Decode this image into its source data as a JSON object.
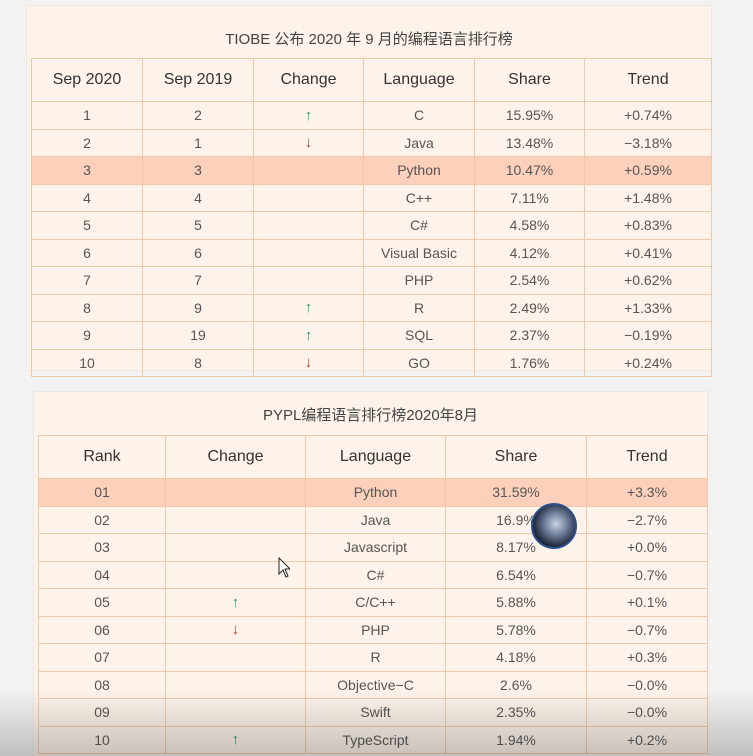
{
  "tiobe": {
    "title": "TIOBE 公布 2020 年 9 月的编程语言排行榜",
    "headers": [
      "Sep 2020",
      "Sep 2019",
      "Change",
      "Language",
      "Share",
      "Trend"
    ],
    "rows": [
      {
        "rank": "1",
        "prev": "2",
        "change": "up",
        "language": "C",
        "share": "15.95%",
        "trend": "+0.74%"
      },
      {
        "rank": "2",
        "prev": "1",
        "change": "down",
        "language": "Java",
        "share": "13.48%",
        "trend": "−3.18%"
      },
      {
        "rank": "3",
        "prev": "3",
        "change": "",
        "language": "Python",
        "share": "10.47%",
        "trend": "+0.59%",
        "highlight": true
      },
      {
        "rank": "4",
        "prev": "4",
        "change": "",
        "language": "C++",
        "share": "7.11%",
        "trend": "+1.48%"
      },
      {
        "rank": "5",
        "prev": "5",
        "change": "",
        "language": "C#",
        "share": "4.58%",
        "trend": "+0.83%"
      },
      {
        "rank": "6",
        "prev": "6",
        "change": "",
        "language": "Visual Basic",
        "share": "4.12%",
        "trend": "+0.41%"
      },
      {
        "rank": "7",
        "prev": "7",
        "change": "",
        "language": "PHP",
        "share": "2.54%",
        "trend": "+0.62%"
      },
      {
        "rank": "8",
        "prev": "9",
        "change": "up",
        "language": "R",
        "share": "2.49%",
        "trend": "+1.33%"
      },
      {
        "rank": "9",
        "prev": "19",
        "change": "up",
        "language": "SQL",
        "share": "2.37%",
        "trend": "−0.19%"
      },
      {
        "rank": "10",
        "prev": "8",
        "change": "down",
        "language": "GO",
        "share": "1.76%",
        "trend": "+0.24%"
      }
    ]
  },
  "pypl": {
    "title": "PYPL编程语言排行榜2020年8月",
    "headers": [
      "Rank",
      "Change",
      "Language",
      "Share",
      "Trend"
    ],
    "rows": [
      {
        "rank": "01",
        "change": "",
        "language": "Python",
        "share": "31.59%",
        "trend": "+3.3%",
        "highlight": true
      },
      {
        "rank": "02",
        "change": "",
        "language": "Java",
        "share": "16.9%",
        "trend": "−2.7%"
      },
      {
        "rank": "03",
        "change": "",
        "language": "Javascript",
        "share": "8.17%",
        "trend": "+0.0%"
      },
      {
        "rank": "04",
        "change": "",
        "language": "C#",
        "share": "6.54%",
        "trend": "−0.7%"
      },
      {
        "rank": "05",
        "change": "up",
        "language": "C/C++",
        "share": "5.88%",
        "trend": "+0.1%"
      },
      {
        "rank": "06",
        "change": "down",
        "language": "PHP",
        "share": "5.78%",
        "trend": "−0.7%"
      },
      {
        "rank": "07",
        "change": "",
        "language": "R",
        "share": "4.18%",
        "trend": "+0.3%"
      },
      {
        "rank": "08",
        "change": "",
        "language": "Objective−C",
        "share": "2.6%",
        "trend": "−0.0%"
      },
      {
        "rank": "09",
        "change": "",
        "language": "Swift",
        "share": "2.35%",
        "trend": "−0.0%"
      },
      {
        "rank": "10",
        "change": "up",
        "language": "TypeScript",
        "share": "1.94%",
        "trend": "+0.2%"
      }
    ]
  },
  "icons": {
    "up": "arrow-up-icon",
    "down": "arrow-down-icon"
  },
  "colors": {
    "up": "#2a9d5c",
    "down": "#c0392b",
    "highlight": "#fcd0bb",
    "border": "#f1c9a6",
    "panel": "#fdf3ea"
  }
}
